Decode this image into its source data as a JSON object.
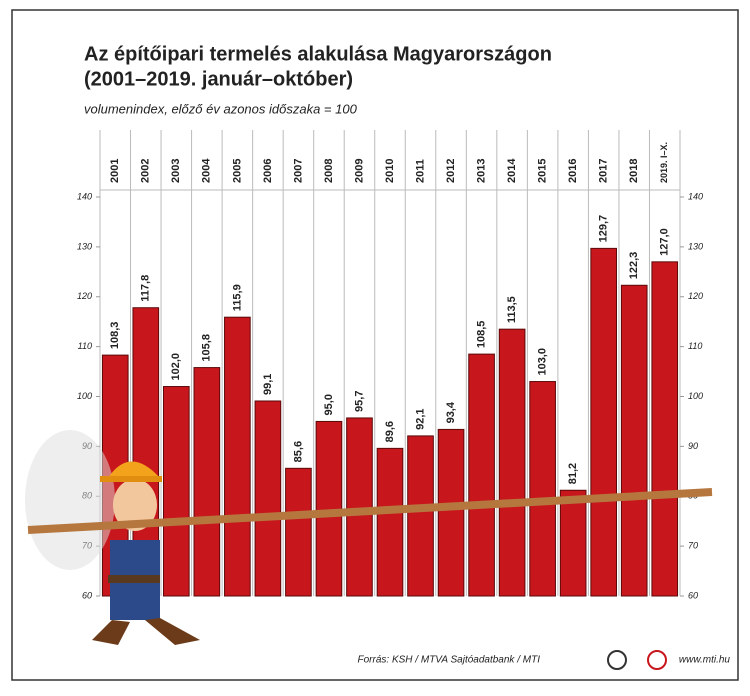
{
  "chart_data": {
    "type": "bar",
    "title": "Az építőipari termelés alakulása Magyarországon",
    "subtitle": "(2001–2019. január–október)",
    "y_label": "volumenindex, előző év azonos időszaka = 100",
    "categories": [
      "2001",
      "2002",
      "2003",
      "2004",
      "2005",
      "2006",
      "2007",
      "2008",
      "2009",
      "2010",
      "2011",
      "2012",
      "2013",
      "2014",
      "2015",
      "2016",
      "2017",
      "2018",
      "2019. I–X."
    ],
    "values": [
      108.3,
      117.8,
      102.0,
      105.8,
      115.9,
      99.1,
      85.6,
      95.0,
      95.7,
      89.6,
      92.1,
      93.4,
      108.5,
      113.5,
      103.0,
      81.2,
      129.7,
      122.3,
      127.0
    ],
    "value_labels": [
      "108,3",
      "117,8",
      "102,0",
      "105,8",
      "115,9",
      "99,1",
      "85,6",
      "95,0",
      "95,7",
      "89,6",
      "92,1",
      "93,4",
      "108,5",
      "113,5",
      "103,0",
      "81,2",
      "129,7",
      "122,3",
      "127,0"
    ],
    "color": "#c8161d",
    "ylim": [
      60,
      140
    ],
    "yticks": [
      60,
      70,
      80,
      90,
      100,
      110,
      120,
      130,
      140
    ],
    "source": "Forrás: KSH / MTVA Sajtóadatbank / MTI",
    "website": "www.mti.hu"
  }
}
